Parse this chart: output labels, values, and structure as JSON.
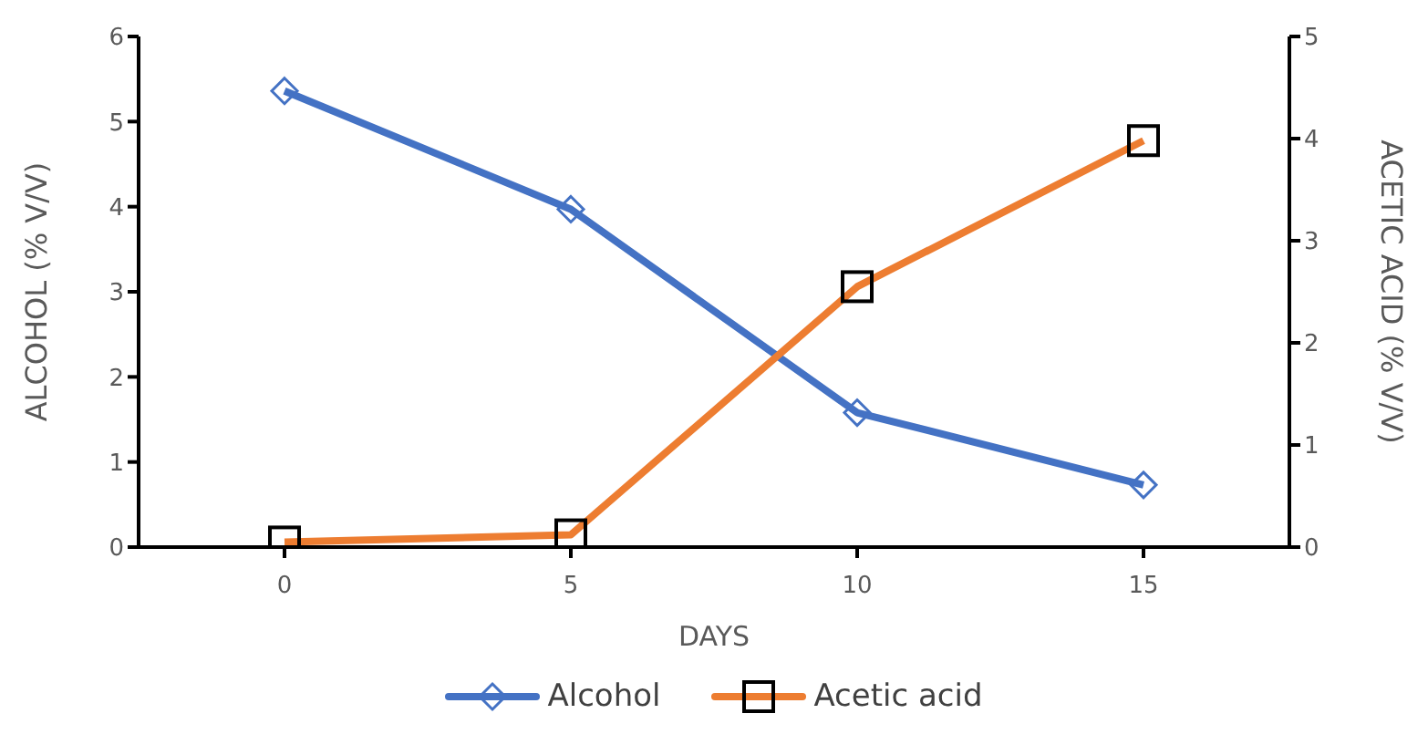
{
  "chart_data": {
    "type": "line",
    "xlabel": "DAYS",
    "ylabel": "ALCOHOL (% V/V)",
    "y2label": "ACETIC ACID (% V/V)",
    "categories": [
      "0",
      "5",
      "10",
      "15"
    ],
    "series": [
      {
        "name": "Alcohol",
        "color": "#4472c4",
        "marker": "diamond",
        "values": [
          5.36,
          3.97,
          1.58,
          0.73
        ]
      },
      {
        "name": "Acetic acid",
        "color": "#ed7d31",
        "marker": "square",
        "axis": "y2",
        "values": [
          0.05,
          0.12,
          2.55,
          3.98
        ]
      }
    ],
    "ylim": [
      0,
      6
    ],
    "yticks": [
      0,
      1,
      2,
      3,
      4,
      5,
      6
    ],
    "y2lim": [
      0,
      5
    ],
    "y2ticks": [
      0,
      1,
      2,
      3,
      4,
      5
    ],
    "grid": false,
    "legend": "bottom"
  }
}
